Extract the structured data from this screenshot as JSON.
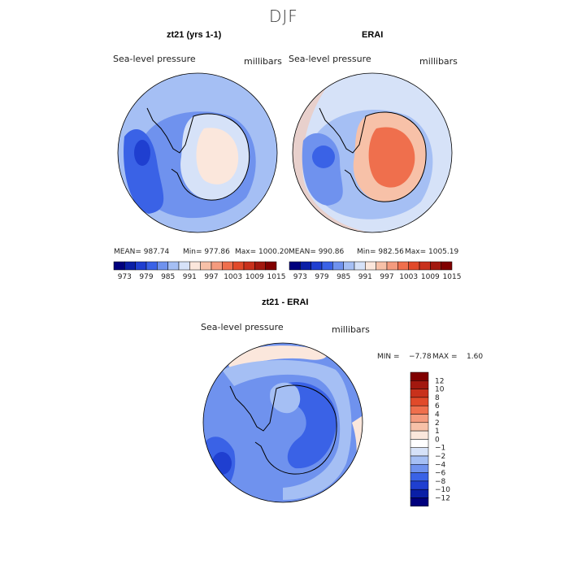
{
  "figure": {
    "title": "DJF"
  },
  "panels": [
    {
      "title": "zt21 (yrs 1-1)",
      "variable": "Sea-level pressure",
      "units": "millibars",
      "stats": {
        "mean": "MEAN= 987.74",
        "min": "Min= 977.86",
        "max": "Max= 1000.20"
      },
      "palette": [
        "#00007d",
        "#0a1fa6",
        "#1f3fd0",
        "#3a62e6",
        "#6f92ee",
        "#a5bff4",
        "#d6e2f8",
        "#fbe7dc",
        "#f7c1a8",
        "#f49b7e",
        "#ef6f4d",
        "#e14a2a",
        "#c8311c",
        "#a2180f",
        "#800000"
      ],
      "colorbar_ticks": [
        "973",
        "979",
        "985",
        "991",
        "997",
        "1003",
        "1009",
        "1015"
      ]
    },
    {
      "title": "ERAI",
      "variable": "Sea-level pressure",
      "units": "millibars",
      "stats": {
        "mean": "MEAN= 990.86",
        "min": "Min= 982.56",
        "max": "Max= 1005.19"
      },
      "palette": [
        "#00007d",
        "#0a1fa6",
        "#1f3fd0",
        "#3a62e6",
        "#6f92ee",
        "#a5bff4",
        "#d6e2f8",
        "#fbe7dc",
        "#f7c1a8",
        "#f49b7e",
        "#ef6f4d",
        "#e14a2a",
        "#c8311c",
        "#a2180f",
        "#800000"
      ],
      "colorbar_ticks": [
        "973",
        "979",
        "985",
        "991",
        "997",
        "1003",
        "1009",
        "1015"
      ]
    }
  ],
  "difference": {
    "title": "zt21 - ERAI",
    "variable": "Sea-level pressure",
    "units": "millibars",
    "stats": {
      "min": "MIN =",
      "min_value": "−7.78",
      "max": "MAX =",
      "max_value": "1.60"
    },
    "palette": [
      "#00007d",
      "#0a1fa6",
      "#1f3fd0",
      "#3a62e6",
      "#6f92ee",
      "#a5bff4",
      "#d6e2f8",
      "#ffffff",
      "#fbe7dc",
      "#f7c1a8",
      "#f49b7e",
      "#ef6f4d",
      "#e14a2a",
      "#c8311c",
      "#a2180f",
      "#800000"
    ],
    "colorbar_ticks": [
      "12",
      "10",
      "8",
      "6",
      "4",
      "2",
      "1",
      "0",
      "−1",
      "−2",
      "−4",
      "−6",
      "−8",
      "−10",
      "−12"
    ]
  }
}
